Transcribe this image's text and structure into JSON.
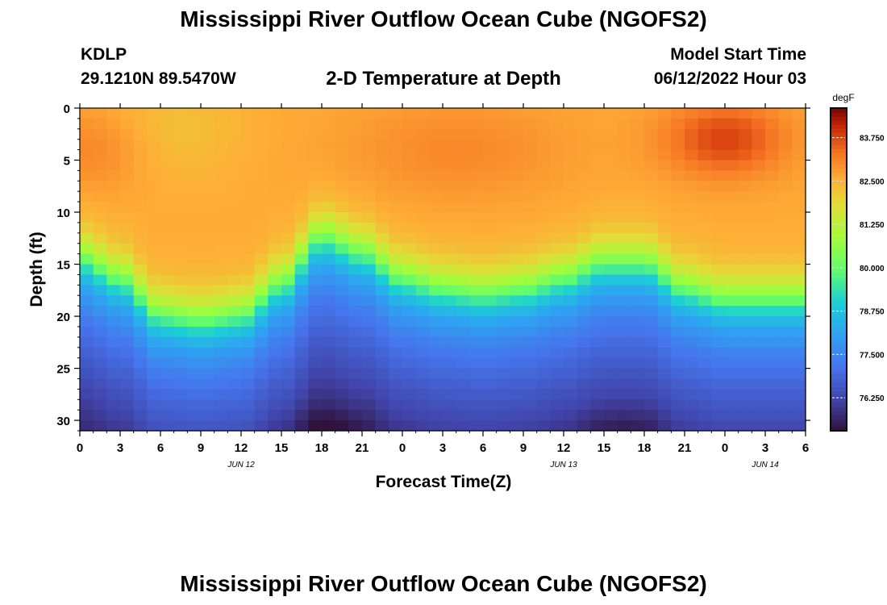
{
  "chart_data": {
    "type": "heatmap",
    "title": "Mississippi River Outflow Ocean Cube (NGOFS2)",
    "subtitle": "2-D Temperature at Depth",
    "station": "KDLP",
    "location": "29.1210N  89.5470W",
    "model_start_label": "Model Start Time",
    "model_start_value": "06/12/2022 Hour 03",
    "xlabel": "Forecast Time(Z)",
    "ylabel": "Depth (ft)",
    "x_ticks": [
      "0",
      "3",
      "6",
      "9",
      "12",
      "15",
      "18",
      "21",
      "0",
      "3",
      "6",
      "9",
      "12",
      "15",
      "18",
      "21",
      "0",
      "3",
      "6"
    ],
    "x_range_hours": [
      0,
      54
    ],
    "date_labels": [
      {
        "text": "JUN 12",
        "hour": 12
      },
      {
        "text": "JUN 13",
        "hour": 36
      },
      {
        "text": "JUN 14",
        "hour": 51
      }
    ],
    "y_ticks": [
      "0",
      "5",
      "10",
      "15",
      "20",
      "25",
      "30"
    ],
    "y_range": [
      0,
      31
    ],
    "colorbar_unit": "degF",
    "colorbar_ticks": [
      "76.250",
      "77.500",
      "78.750",
      "80.000",
      "81.250",
      "82.500",
      "83.750"
    ],
    "colorbar_range": [
      75.3,
      84.6
    ],
    "thermocline_depth_ft": [
      {
        "hour": 0,
        "depth": 14.5
      },
      {
        "hour": 3,
        "depth": 16.5
      },
      {
        "hour": 6,
        "depth": 20
      },
      {
        "hour": 9,
        "depth": 20.5
      },
      {
        "hour": 12,
        "depth": 20
      },
      {
        "hour": 15,
        "depth": 17
      },
      {
        "hour": 18,
        "depth": 12.5
      },
      {
        "hour": 21,
        "depth": 14
      },
      {
        "hour": 24,
        "depth": 16.5
      },
      {
        "hour": 27,
        "depth": 17.5
      },
      {
        "hour": 30,
        "depth": 18
      },
      {
        "hour": 33,
        "depth": 17.5
      },
      {
        "hour": 36,
        "depth": 16.5
      },
      {
        "hour": 39,
        "depth": 15
      },
      {
        "hour": 42,
        "depth": 15
      },
      {
        "hour": 45,
        "depth": 17.5
      },
      {
        "hour": 48,
        "depth": 18.5
      },
      {
        "hour": 51,
        "depth": 18.5
      },
      {
        "hour": 54,
        "depth": 18.5
      }
    ],
    "warm_core": {
      "hour": 48,
      "depth": 3,
      "value": 84.5
    },
    "grid": false,
    "colorbar_position": "right"
  }
}
